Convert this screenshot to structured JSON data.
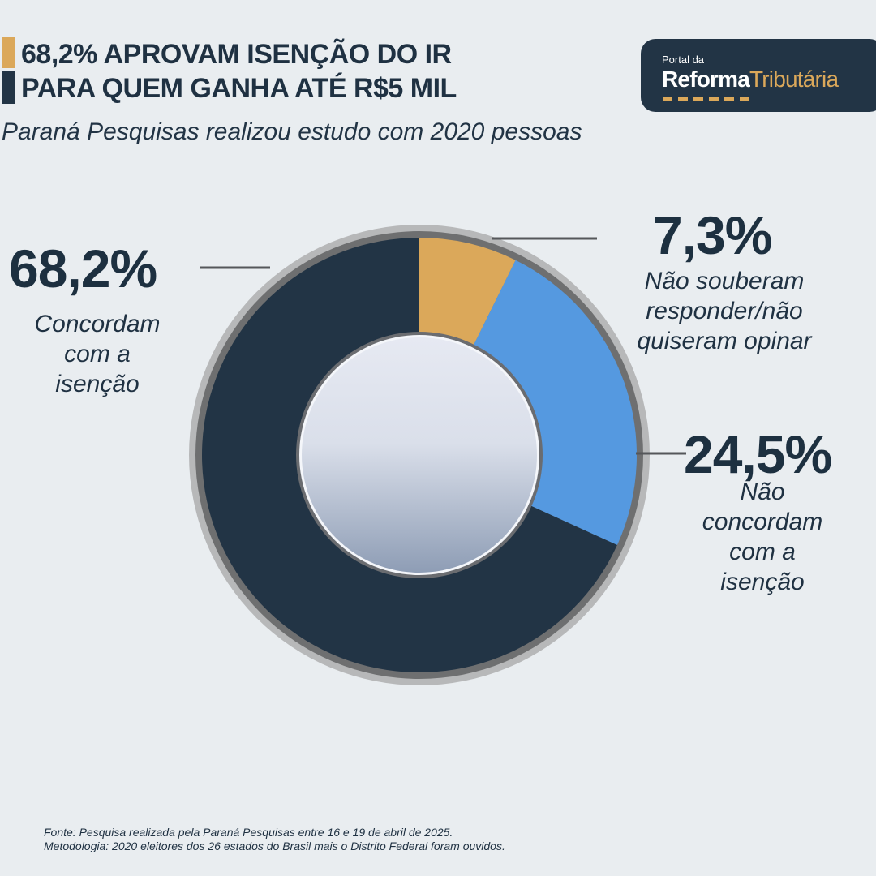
{
  "title": {
    "line1": "68,2% APROVAM ISENÇÃO DO IR",
    "line2": "PARA QUEM GANHA ATÉ R$5 MIL"
  },
  "subtitle": "Paraná Pesquisas realizou estudo com 2020 pessoas",
  "logo": {
    "small": "Portal da",
    "brand_a": "Reforma",
    "brand_b": "Tributária"
  },
  "colors": {
    "background": "#e9edf0",
    "navy": "#223445",
    "gold": "#dba85a",
    "blue": "#5599e0"
  },
  "chart_data": {
    "type": "pie",
    "variant": "donut",
    "slices": [
      {
        "value": 7.3,
        "value_label": "7,3%",
        "label_lines": [
          "Não souberam",
          "responder/não",
          "quiseram opinar"
        ],
        "color": "#dba85a"
      },
      {
        "value": 24.5,
        "value_label": "24,5%",
        "label_lines": [
          "Não",
          "concordam",
          "com a",
          "isenção"
        ],
        "color": "#5599e0"
      },
      {
        "value": 68.2,
        "value_label": "68,2%",
        "label_lines": [
          "Concordam",
          "com a",
          "isenção"
        ],
        "color": "#223445"
      }
    ]
  },
  "source": {
    "line1": "Fonte: Pesquisa realizada pela Paraná Pesquisas entre 16 e 19 de abril de 2025.",
    "line2": "Metodologia: 2020 eleitores dos 26 estados do Brasil mais o Distrito Federal foram ouvidos."
  }
}
